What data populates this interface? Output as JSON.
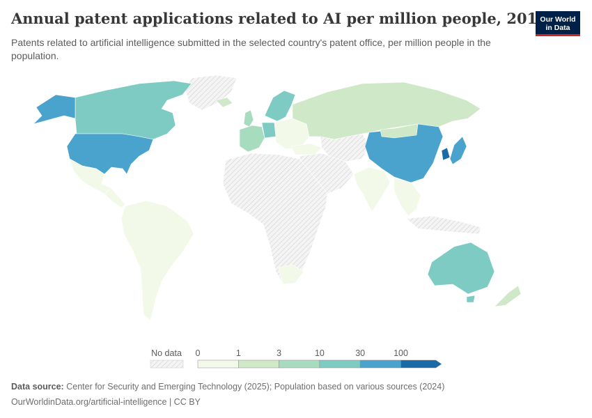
{
  "header": {
    "title": "Annual patent applications related to AI per million people, 2019",
    "subtitle": "Patents related to artificial intelligence submitted in the selected country's patent office, per million people in the population."
  },
  "logo": {
    "line1": "Our World",
    "line2": "in Data"
  },
  "legend": {
    "no_data_label": "No data",
    "bins": [
      {
        "from": "0",
        "to": "1",
        "color": "#f2f9e9"
      },
      {
        "from": "1",
        "to": "3",
        "color": "#cfe8c8"
      },
      {
        "from": "3",
        "to": "10",
        "color": "#a8dcbf"
      },
      {
        "from": "10",
        "to": "30",
        "color": "#7ecbc3"
      },
      {
        "from": "30",
        "to": "100",
        "color": "#4aa3cc"
      },
      {
        "from": "100",
        "to": "",
        "color": "#1a6aa8"
      }
    ],
    "ticks": [
      "0",
      "1",
      "3",
      "10",
      "30",
      "100"
    ]
  },
  "colors": {
    "no_data": "#e6e6e6",
    "border": "#ffffff"
  },
  "footer": {
    "source_label": "Data source:",
    "source_text": "Center for Security and Emerging Technology (2025); Population based on various sources (2024)",
    "attribution": "OurWorldinData.org/artificial-intelligence | CC BY"
  }
}
